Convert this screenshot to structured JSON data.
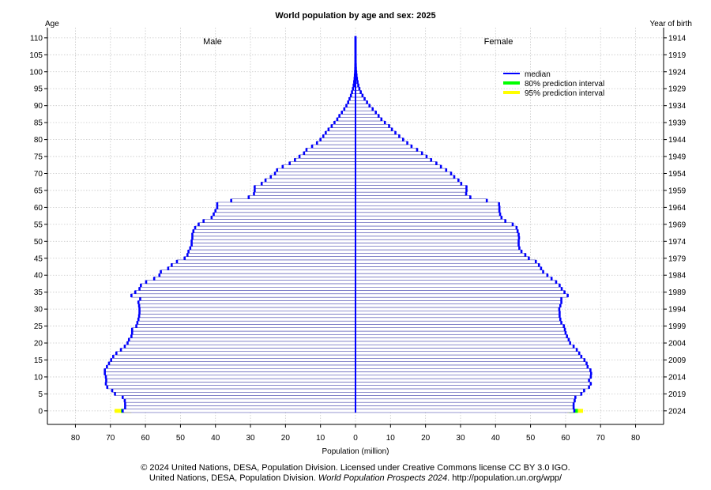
{
  "chart_data": {
    "type": "bar",
    "title": "World population by age and sex: 2025",
    "xlabel": "Population (million)",
    "ylabel_left": "Age",
    "ylabel_right": "Year of birth",
    "sex_labels": [
      "Male",
      "Female"
    ],
    "x_ticks": [
      "80",
      "70",
      "60",
      "50",
      "40",
      "30",
      "20",
      "10",
      "0",
      "10",
      "20",
      "30",
      "40",
      "50",
      "60",
      "70",
      "80"
    ],
    "x_tick_values": [
      -80,
      -70,
      -60,
      -50,
      -40,
      -30,
      -20,
      -10,
      0,
      10,
      20,
      30,
      40,
      50,
      60,
      70,
      80
    ],
    "xlim": [
      -88,
      88
    ],
    "ylim": [
      -4,
      113
    ],
    "age_ticks": [
      "0",
      "5",
      "10",
      "15",
      "20",
      "25",
      "30",
      "35",
      "40",
      "45",
      "50",
      "55",
      "60",
      "65",
      "70",
      "75",
      "80",
      "85",
      "90",
      "95",
      "100",
      "105",
      "110"
    ],
    "age_tick_values": [
      0,
      5,
      10,
      15,
      20,
      25,
      30,
      35,
      40,
      45,
      50,
      55,
      60,
      65,
      70,
      75,
      80,
      85,
      90,
      95,
      100,
      105,
      110
    ],
    "birth_year_ticks": [
      "2024",
      "2019",
      "2014",
      "2009",
      "2004",
      "1999",
      "1994",
      "1989",
      "1984",
      "1979",
      "1974",
      "1969",
      "1964",
      "1959",
      "1954",
      "1949",
      "1944",
      "1939",
      "1934",
      "1929",
      "1924",
      "1919",
      "1914"
    ],
    "grid": true,
    "legend_position": "top-right",
    "legend": [
      {
        "label": "median",
        "color": "#0000ff"
      },
      {
        "label": "80% prediction interval",
        "color": "#00ff00"
      },
      {
        "label": "95% prediction interval",
        "color": "#ffff00"
      }
    ],
    "ages": [
      0,
      1,
      2,
      3,
      4,
      5,
      6,
      7,
      8,
      9,
      10,
      11,
      12,
      13,
      14,
      15,
      16,
      17,
      18,
      19,
      20,
      21,
      22,
      23,
      24,
      25,
      26,
      27,
      28,
      29,
      30,
      31,
      32,
      33,
      34,
      35,
      36,
      37,
      38,
      39,
      40,
      41,
      42,
      43,
      44,
      45,
      46,
      47,
      48,
      49,
      50,
      51,
      52,
      53,
      54,
      55,
      56,
      57,
      58,
      59,
      60,
      61,
      62,
      63,
      64,
      65,
      66,
      67,
      68,
      69,
      70,
      71,
      72,
      73,
      74,
      75,
      76,
      77,
      78,
      79,
      80,
      81,
      82,
      83,
      84,
      85,
      86,
      87,
      88,
      89,
      90,
      91,
      92,
      93,
      94,
      95,
      96,
      97,
      98,
      99,
      100,
      101,
      102,
      103,
      104,
      105,
      106,
      107,
      108,
      109,
      110
    ],
    "series": [
      {
        "name": "Male",
        "values": [
          66.5,
          65.8,
          65.8,
          65.9,
          66.5,
          68.7,
          69.5,
          70.9,
          71.3,
          71.2,
          71.3,
          71.6,
          71.6,
          71.0,
          70.4,
          69.8,
          69.2,
          68.3,
          67.0,
          65.9,
          65.1,
          64.7,
          64.0,
          63.8,
          63.8,
          62.6,
          62.3,
          62.0,
          61.8,
          61.7,
          61.7,
          61.8,
          62.0,
          61.5,
          64.0,
          62.9,
          61.7,
          61.3,
          59.8,
          57.5,
          56.0,
          55.6,
          53.5,
          52.5,
          51.0,
          48.8,
          48.0,
          47.7,
          47.2,
          46.8,
          46.8,
          46.6,
          46.6,
          46.3,
          45.8,
          44.8,
          43.4,
          41.1,
          40.5,
          40.0,
          39.5,
          39.5,
          35.5,
          30.5,
          29.0,
          28.8,
          28.8,
          26.8,
          25.7,
          24.2,
          23.0,
          22.4,
          20.8,
          18.8,
          17.3,
          16.0,
          14.7,
          14.0,
          12.4,
          11.0,
          10.0,
          9.2,
          8.5,
          7.7,
          6.8,
          6.0,
          5.2,
          4.6,
          3.9,
          3.2,
          2.6,
          2.1,
          1.7,
          1.3,
          1.0,
          0.72,
          0.52,
          0.37,
          0.25,
          0.17,
          0.11,
          0.07,
          0.05,
          0.03,
          0.02,
          0.01,
          0.01,
          0.01,
          0.01,
          0.01,
          0.01
        ],
        "interval80": [
          66.0,
          67.0
        ],
        "interval95": [
          64.0,
          68.8
        ]
      },
      {
        "name": "Female",
        "values": [
          62.5,
          62.3,
          62.3,
          62.6,
          62.8,
          64.5,
          65.3,
          66.7,
          67.2,
          66.7,
          67.2,
          67.3,
          67.1,
          66.3,
          66.0,
          65.4,
          64.5,
          63.9,
          63.2,
          62.3,
          61.3,
          60.9,
          60.4,
          60.0,
          59.8,
          59.5,
          58.8,
          58.5,
          58.3,
          58.3,
          58.2,
          58.5,
          58.8,
          58.8,
          60.6,
          59.7,
          58.9,
          58.3,
          57.3,
          56.0,
          54.8,
          53.6,
          53.0,
          52.4,
          51.5,
          49.5,
          48.5,
          47.4,
          46.8,
          46.6,
          46.6,
          46.7,
          46.6,
          46.3,
          46.0,
          44.9,
          42.8,
          41.7,
          41.3,
          41.1,
          41.1,
          41.0,
          37.5,
          32.8,
          31.6,
          31.7,
          31.7,
          30.2,
          29.4,
          28.2,
          27.3,
          25.9,
          24.4,
          23.1,
          21.6,
          20.3,
          19.0,
          17.6,
          16.0,
          14.8,
          13.6,
          12.5,
          11.4,
          10.4,
          9.6,
          8.4,
          7.4,
          6.6,
          5.8,
          4.9,
          4.0,
          3.3,
          2.6,
          2.0,
          1.5,
          1.1,
          0.8,
          0.58,
          0.4,
          0.28,
          0.18,
          0.11,
          0.07,
          0.04,
          0.03,
          0.02,
          0.01,
          0.01,
          0.01,
          0.01,
          0.01
        ],
        "interval80": [
          61.0,
          63.5
        ],
        "interval95": [
          60.5,
          65.0
        ]
      }
    ]
  },
  "footer": {
    "line1": "© 2024 United Nations, DESA, Population Division. Licensed under Creative Commons license CC BY 3.0 IGO.",
    "line2_prefix": "United Nations, DESA, Population Division.",
    "line2_italic": "World Population Prospects 2024",
    "line2_suffix": ". http://population.un.org/wpp/"
  }
}
